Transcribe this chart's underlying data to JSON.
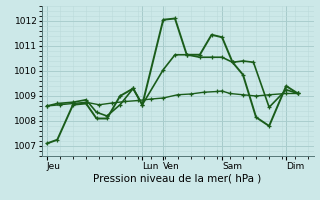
{
  "background_color": "#cce8e8",
  "grid_color_major": "#aacece",
  "grid_color_minor": "#bbdada",
  "line_color": "#1a5c1a",
  "title": "Pression niveau de la mer( hPa )",
  "ylabel_ticks": [
    1007,
    1008,
    1009,
    1010,
    1011,
    1012
  ],
  "ylim": [
    1006.6,
    1012.6
  ],
  "xlim": [
    -0.2,
    10.2
  ],
  "day_labels": [
    "Jeu",
    "Lun",
    "Ven",
    "Sam",
    "Dim"
  ],
  "day_positions": [
    0.0,
    3.65,
    4.45,
    6.7,
    9.15
  ],
  "vline_positions": [
    0.0,
    3.65,
    4.45,
    6.7,
    9.15
  ],
  "series": [
    {
      "x": [
        0.0,
        0.4,
        1.0,
        1.5,
        1.9,
        2.3,
        2.8,
        3.3,
        3.65,
        4.45,
        4.9,
        5.35,
        5.85,
        6.3,
        6.7,
        7.1,
        7.5,
        8.0,
        8.5,
        9.15,
        9.6
      ],
      "y": [
        1007.1,
        1007.25,
        1008.65,
        1008.7,
        1008.1,
        1008.1,
        1009.0,
        1009.3,
        1008.65,
        1012.05,
        1012.1,
        1010.65,
        1010.65,
        1011.45,
        1011.35,
        1010.35,
        1009.85,
        1008.15,
        1007.8,
        1009.4,
        1009.1
      ],
      "lw": 1.4,
      "ms": 3.5
    },
    {
      "x": [
        0.0,
        0.4,
        1.0,
        1.5,
        1.9,
        2.3,
        2.8,
        3.3,
        3.65,
        4.45,
        4.9,
        5.35,
        5.85,
        6.3,
        6.7,
        7.1,
        7.5,
        7.9,
        8.5,
        9.15,
        9.6
      ],
      "y": [
        1008.6,
        1008.7,
        1008.75,
        1008.85,
        1008.35,
        1008.2,
        1008.65,
        1009.3,
        1008.65,
        1010.05,
        1010.65,
        1010.65,
        1010.55,
        1010.55,
        1010.55,
        1010.35,
        1010.4,
        1010.35,
        1008.55,
        1009.25,
        1009.1
      ],
      "lw": 1.2,
      "ms": 3.0
    },
    {
      "x": [
        0.0,
        0.5,
        1.0,
        1.5,
        2.0,
        2.5,
        3.0,
        3.5,
        4.0,
        4.45,
        5.0,
        5.5,
        6.0,
        6.5,
        6.7,
        7.0,
        7.5,
        8.0,
        8.5,
        9.15,
        9.6
      ],
      "y": [
        1008.6,
        1008.65,
        1008.7,
        1008.75,
        1008.65,
        1008.72,
        1008.78,
        1008.82,
        1008.88,
        1008.92,
        1009.05,
        1009.08,
        1009.15,
        1009.18,
        1009.2,
        1009.1,
        1009.05,
        1009.0,
        1009.05,
        1009.1,
        1009.1
      ],
      "lw": 1.0,
      "ms": 2.5
    }
  ]
}
